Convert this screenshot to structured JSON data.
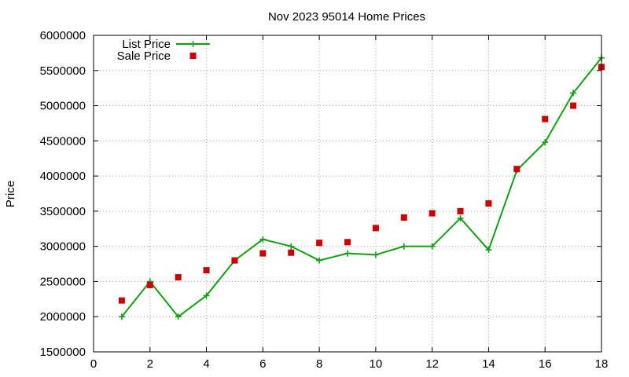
{
  "chart_data": {
    "type": "line",
    "title": "Nov 2023 95014 Home Prices",
    "xlabel": "",
    "ylabel": "Price",
    "xlim": [
      0,
      18
    ],
    "ylim": [
      1500000,
      6000000
    ],
    "xticks": [
      "0",
      "2",
      "4",
      "6",
      "8",
      "10",
      "12",
      "14",
      "16",
      "18"
    ],
    "yticks": [
      "1500000",
      "2000000",
      "2500000",
      "3000000",
      "3500000",
      "4000000",
      "4500000",
      "5000000",
      "5500000",
      "6000000"
    ],
    "grid": true,
    "legend_position": "top-left",
    "x": [
      1,
      2,
      3,
      4,
      5,
      6,
      7,
      8,
      9,
      10,
      11,
      12,
      13,
      14,
      15,
      16,
      17,
      18
    ],
    "series": [
      {
        "name": "List Price",
        "style": "linespoints",
        "marker": "plus",
        "color": "#11a011",
        "values": [
          2000000,
          2500000,
          2000000,
          2300000,
          2800000,
          3100000,
          3000000,
          2800000,
          2900000,
          2880000,
          3000000,
          3000000,
          3400000,
          2950000,
          4080000,
          4480000,
          5180000,
          5680000
        ]
      },
      {
        "name": "Sale Price",
        "style": "points",
        "marker": "square",
        "color": "#cc0000",
        "values": [
          2230000,
          2450000,
          2560000,
          2660000,
          2800000,
          2900000,
          2910000,
          3050000,
          3060000,
          3260000,
          3410000,
          3470000,
          3500000,
          3610000,
          4100000,
          4810000,
          5000000,
          5550000
        ]
      }
    ]
  }
}
